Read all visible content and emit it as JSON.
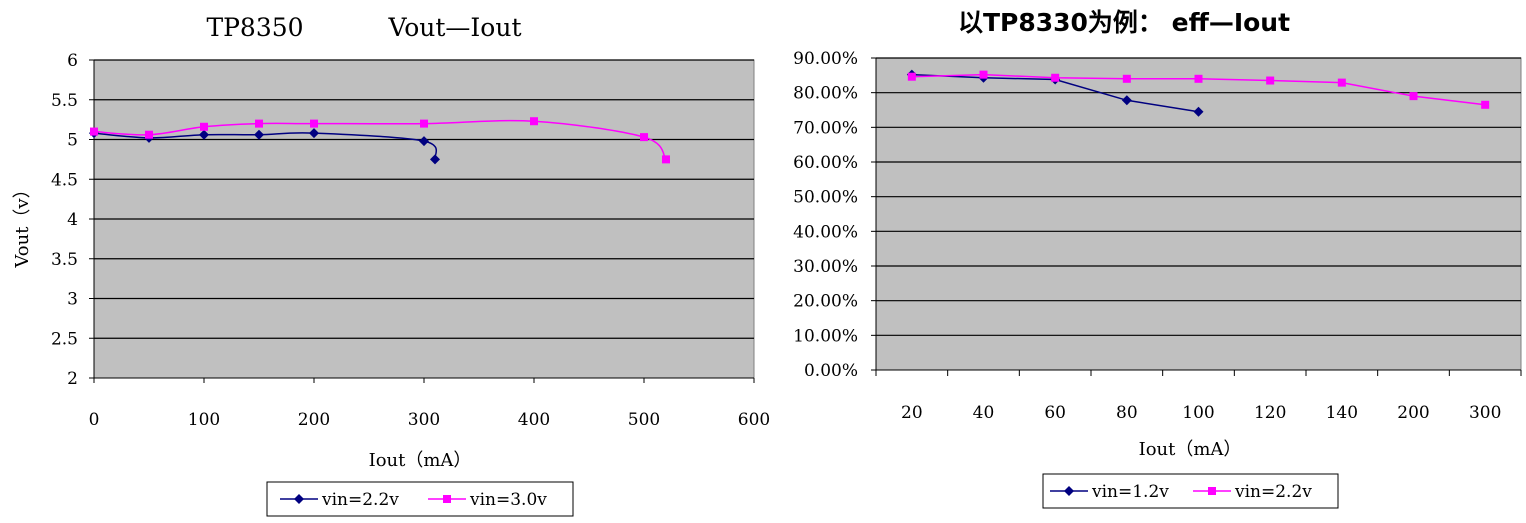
{
  "chart_data": [
    {
      "type": "line",
      "title": "TP8350",
      "subtitle": "Vout—Iout",
      "xlabel": "Iout（mA）",
      "ylabel": "Vout（v）",
      "xlim": [
        0,
        600
      ],
      "ylim": [
        2,
        6
      ],
      "xticks": [
        "0",
        "100",
        "200",
        "300",
        "400",
        "500",
        "600"
      ],
      "yticks": [
        "2",
        "2.5",
        "3",
        "3.5",
        "4",
        "4.5",
        "5",
        "5.5",
        "6"
      ],
      "grid": true,
      "legend_position": "bottom",
      "series": [
        {
          "name": "vin=2.2v",
          "color": "#000080",
          "marker": "diamond",
          "x": [
            0,
            50,
            100,
            150,
            200,
            300,
            310
          ],
          "y": [
            5.08,
            5.02,
            5.06,
            5.06,
            5.08,
            4.98,
            4.75
          ]
        },
        {
          "name": "vin=3.0v",
          "color": "#ff00ff",
          "marker": "square",
          "x": [
            0,
            50,
            100,
            150,
            200,
            300,
            400,
            500,
            520
          ],
          "y": [
            5.1,
            5.06,
            5.16,
            5.2,
            5.2,
            5.2,
            5.23,
            5.03,
            4.75
          ]
        }
      ]
    },
    {
      "type": "line",
      "title": "以TP8330为例： eff—Iout",
      "xlabel": "Iout（mA）",
      "ylabel": "",
      "categories": [
        "20",
        "40",
        "60",
        "80",
        "100",
        "120",
        "140",
        "200",
        "300"
      ],
      "ylim": [
        0,
        90
      ],
      "yticks": [
        "0.00%",
        "10.00%",
        "20.00%",
        "30.00%",
        "40.00%",
        "50.00%",
        "60.00%",
        "70.00%",
        "80.00%",
        "90.00%"
      ],
      "grid": true,
      "legend_position": "bottom",
      "series": [
        {
          "name": "vin=1.2v",
          "color": "#000080",
          "marker": "diamond",
          "values": [
            85.2,
            84.3,
            83.8,
            77.8,
            74.5,
            null,
            null,
            null,
            null
          ]
        },
        {
          "name": "vin=2.2v",
          "color": "#ff00ff",
          "marker": "square",
          "values": [
            84.6,
            85.2,
            84.3,
            84.0,
            84.0,
            83.5,
            82.9,
            79.0,
            76.5
          ]
        }
      ]
    }
  ]
}
